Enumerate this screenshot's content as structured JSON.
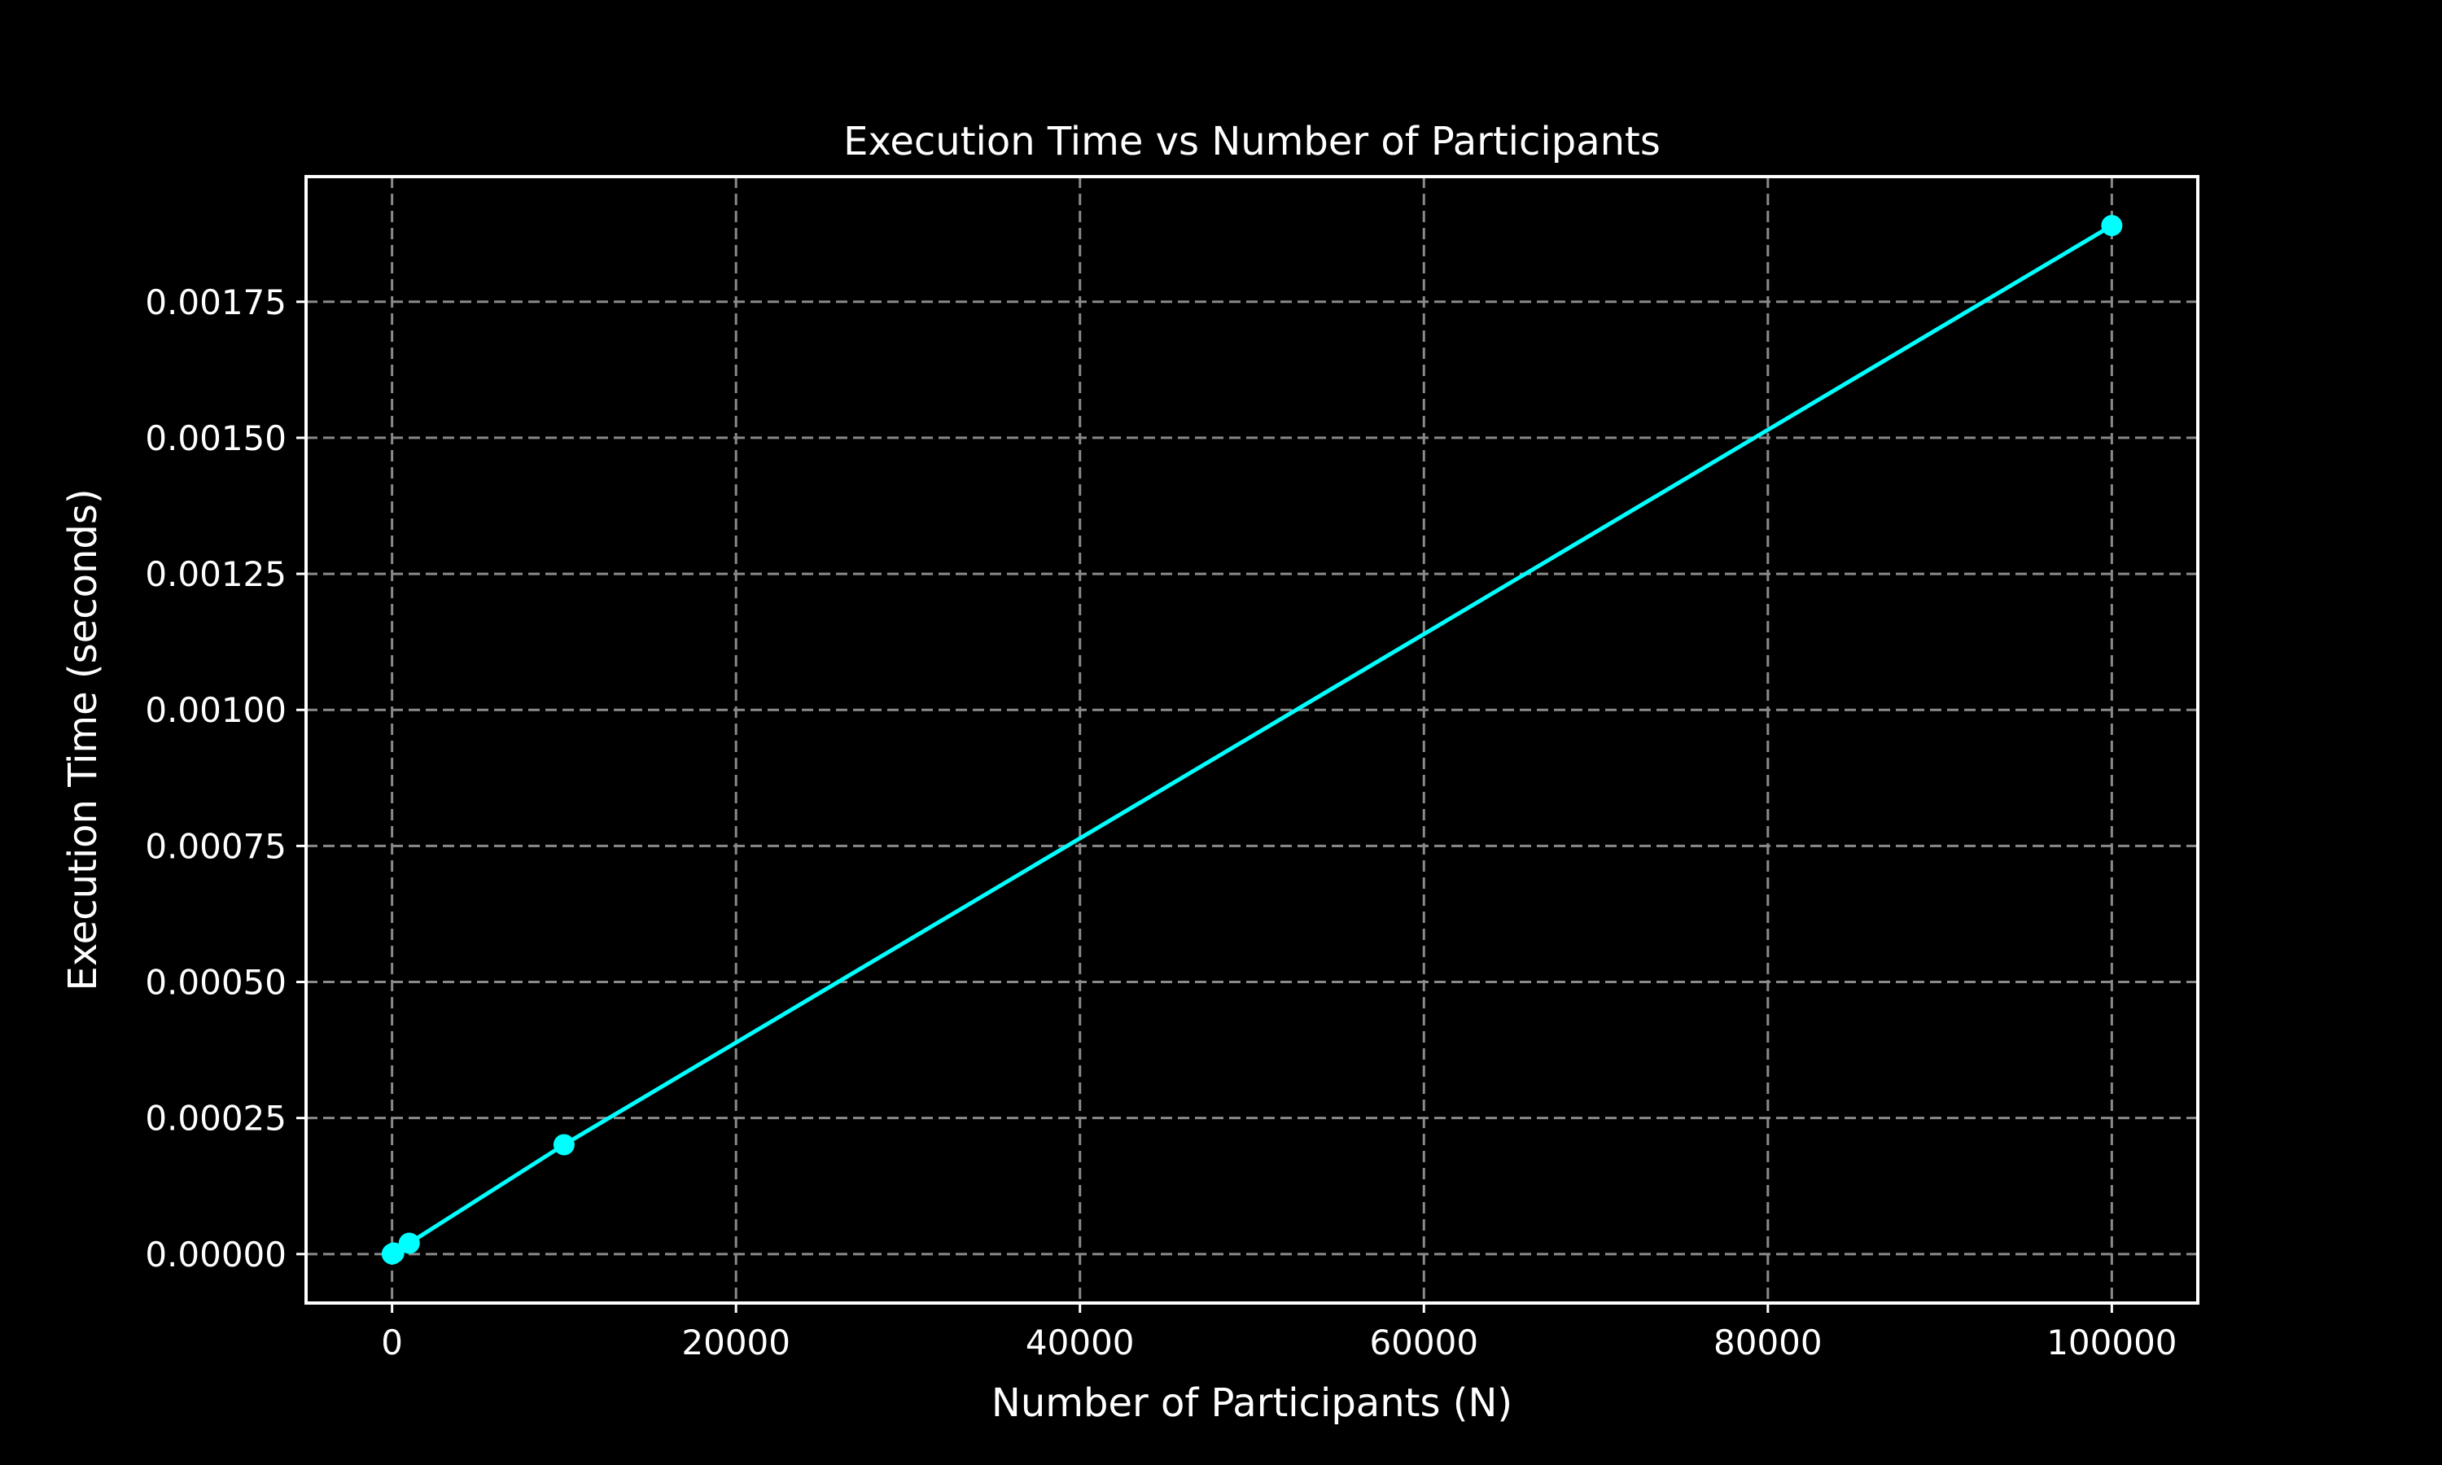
{
  "chart_data": {
    "type": "line",
    "title": "Execution Time vs Number of Participants",
    "xlabel": "Number of Participants (N)",
    "ylabel": "Execution Time (seconds)",
    "xlim": [
      -5000,
      105000
    ],
    "ylim": [
      -9e-05,
      0.00198
    ],
    "xticks": [
      0,
      20000,
      40000,
      60000,
      80000,
      100000
    ],
    "xtick_labels": [
      "0",
      "20000",
      "40000",
      "60000",
      "80000",
      "100000"
    ],
    "yticks": [
      0,
      0.00025,
      0.0005,
      0.00075,
      0.001,
      0.00125,
      0.0015,
      0.00175
    ],
    "ytick_labels": [
      "0.00000",
      "0.00025",
      "0.00050",
      "0.00075",
      "0.00100",
      "0.00125",
      "0.00150",
      "0.00175"
    ],
    "grid": true,
    "background": "#000000",
    "series": [
      {
        "color": "#00ffff",
        "marker": "circle",
        "x": [
          10,
          100,
          1000,
          10000,
          100000
        ],
        "y": [
          2e-07,
          2e-06,
          2e-05,
          0.000201,
          0.00189
        ]
      }
    ]
  }
}
